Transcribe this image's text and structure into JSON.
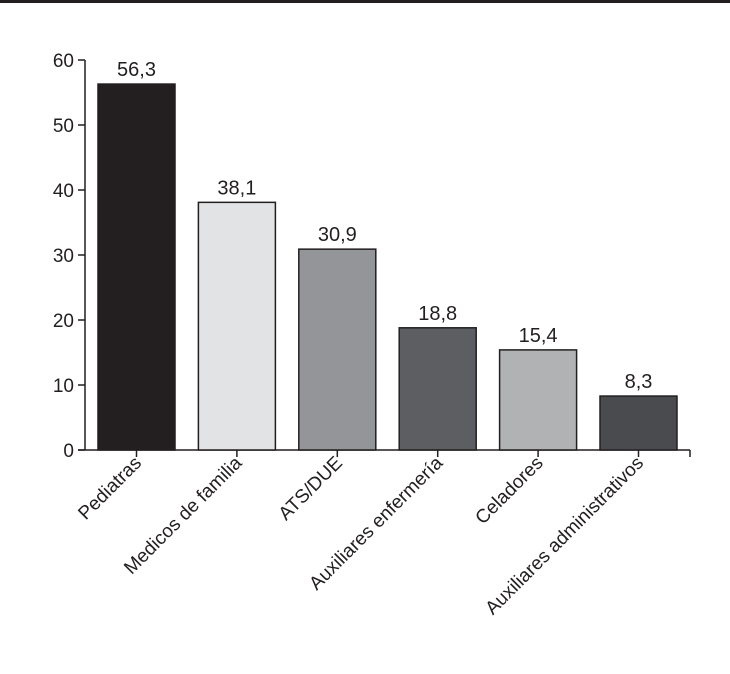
{
  "chart_data": {
    "type": "bar",
    "title": "",
    "xlabel": "",
    "ylabel": "",
    "categories": [
      "Pediatras",
      "Medicos de familia",
      "ATS/DUE",
      "Auxiliares enfermería",
      "Celadores",
      "Auxiliares administrativos"
    ],
    "values": [
      56.3,
      38.1,
      30.9,
      18.8,
      15.4,
      8.3
    ],
    "value_labels": [
      "56,3",
      "38,1",
      "30,9",
      "18,8",
      "15,4",
      "8,3"
    ],
    "bar_colors": [
      "#231f20",
      "#e2e3e4",
      "#939598",
      "#5d5e61",
      "#b0b2b4",
      "#4a4b4e"
    ],
    "ylim": [
      0,
      60
    ],
    "yticks": [
      0,
      10,
      20,
      30,
      40,
      50,
      60
    ],
    "ytick_labels": [
      "0",
      "10",
      "20",
      "30",
      "40",
      "50",
      "60"
    ],
    "grid": false,
    "legend": "none"
  }
}
